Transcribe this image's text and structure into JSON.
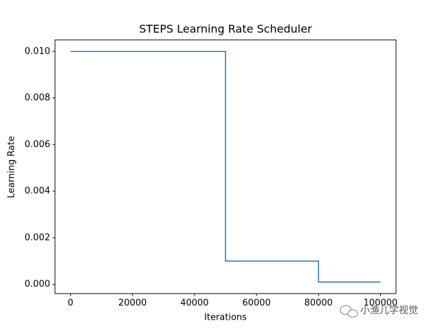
{
  "chart_data": {
    "type": "line",
    "title": "STEPS Learning Rate Scheduler",
    "xlabel": "Iterations",
    "ylabel": "Learning Rate",
    "x": [
      0,
      50000,
      50000,
      80000,
      80000,
      100000
    ],
    "series": [
      {
        "name": "lr",
        "color": "#1f77b4",
        "values": [
          0.01,
          0.01,
          0.001,
          0.001,
          0.0001,
          0.0001
        ]
      }
    ],
    "xlim": [
      -5000,
      105000
    ],
    "ylim": [
      -0.000395,
      0.010495
    ],
    "xticks": [
      0,
      20000,
      40000,
      60000,
      80000,
      100000
    ],
    "yticks": [
      {
        "value": 0,
        "label": "0.000"
      },
      {
        "value": 0.002,
        "label": "0.002"
      },
      {
        "value": 0.004,
        "label": "0.004"
      },
      {
        "value": 0.006,
        "label": "0.006"
      },
      {
        "value": 0.008,
        "label": "0.008"
      },
      {
        "value": 0.01,
        "label": "0.010"
      }
    ],
    "grid": false
  },
  "watermark": "小渔儿学视觉"
}
